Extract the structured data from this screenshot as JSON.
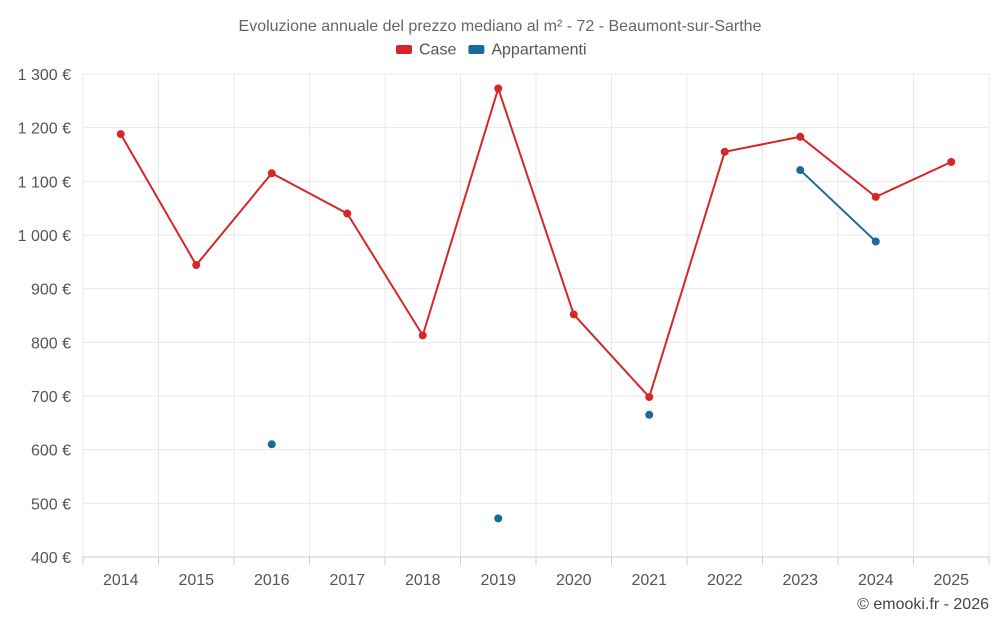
{
  "chart_data": {
    "type": "line",
    "title": "Evoluzione annuale del prezzo mediano al m² - 72 - Beaumont-sur-Sarthe",
    "xlabel": "",
    "ylabel": "",
    "categories": [
      "2014",
      "2015",
      "2016",
      "2017",
      "2018",
      "2019",
      "2020",
      "2021",
      "2022",
      "2023",
      "2024",
      "2025"
    ],
    "ylim": [
      400,
      1300
    ],
    "yticks": [
      400,
      500,
      600,
      700,
      800,
      900,
      1000,
      1100,
      1200,
      1300
    ],
    "ytick_labels": [
      "400 €",
      "500 €",
      "600 €",
      "700 €",
      "800 €",
      "900 €",
      "1 000 €",
      "1 100 €",
      "1 200 €",
      "1 300 €"
    ],
    "legend_position": "top-center",
    "grid": true,
    "series": [
      {
        "name": "Case",
        "color": "#d62728",
        "values": [
          1188,
          944,
          1115,
          1040,
          813,
          1273,
          852,
          698,
          1155,
          1183,
          1071,
          1136
        ]
      },
      {
        "name": "Appartamenti",
        "color": "#1a6a9a",
        "values": [
          null,
          null,
          610,
          null,
          null,
          472,
          null,
          665,
          null,
          1121,
          988,
          null
        ]
      }
    ]
  },
  "credit": "© emooki.fr - 2026"
}
